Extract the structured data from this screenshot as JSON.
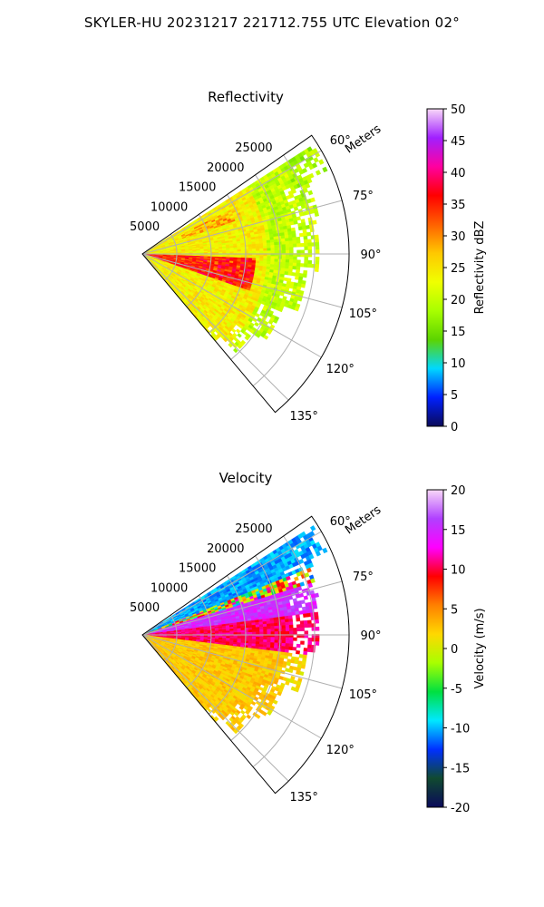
{
  "suptitle": "SKYLER-HU  20231217  221712.755 UTC Elevation 02°",
  "chart_data": [
    {
      "type": "heatmap",
      "subtype": "polar-sector PPI",
      "title": "Reflectivity",
      "range_label": "Meters",
      "range_ticks": [
        5000,
        10000,
        15000,
        20000,
        25000
      ],
      "rlim": [
        0,
        30000
      ],
      "azimuth_ticks": [
        "60°",
        "75°",
        "90°",
        "105°",
        "120°",
        "135°"
      ],
      "azimuth_range_deg": [
        55,
        140
      ],
      "grid": true,
      "colorbar": {
        "label": "Reflectivity dBZ",
        "ticks": [
          0,
          5,
          10,
          15,
          20,
          25,
          30,
          35,
          40,
          45,
          50
        ],
        "range": [
          0,
          50
        ],
        "stops": [
          "#0a0a5a",
          "#0020ff",
          "#00d8ff",
          "#5cd400",
          "#a8ff00",
          "#f0ff00",
          "#ffc800",
          "#ff6000",
          "#ff0000",
          "#ff00a0",
          "#a020ff",
          "#f8d8f8"
        ]
      },
      "typical_values": {
        "near_azimuth_60_75": 25,
        "core_band_azimuth_95_105": 35,
        "far_range": 20
      }
    },
    {
      "type": "heatmap",
      "subtype": "polar-sector PPI",
      "title": "Velocity",
      "range_label": "Meters",
      "range_ticks": [
        5000,
        10000,
        15000,
        20000,
        25000
      ],
      "rlim": [
        0,
        30000
      ],
      "azimuth_ticks": [
        "60°",
        "75°",
        "90°",
        "105°",
        "120°",
        "135°"
      ],
      "azimuth_range_deg": [
        55,
        140
      ],
      "grid": true,
      "colorbar": {
        "label": "Velocity (m/s)",
        "ticks": [
          -20,
          -15,
          -10,
          -5,
          0,
          5,
          10,
          15,
          20
        ],
        "range": [
          -20,
          20
        ],
        "stops": [
          "#0a0a5a",
          "#104a30",
          "#0030ff",
          "#00e8ff",
          "#00e040",
          "#a8ff00",
          "#ffd800",
          "#ff8000",
          "#ff0000",
          "#ff00ff",
          "#b040ff",
          "#f8d8f8"
        ]
      },
      "typical_values": {
        "azimuth_55_70": -10,
        "azimuth_70_80": 15,
        "azimuth_80_95": 10,
        "azimuth_95_140": 2
      }
    }
  ]
}
